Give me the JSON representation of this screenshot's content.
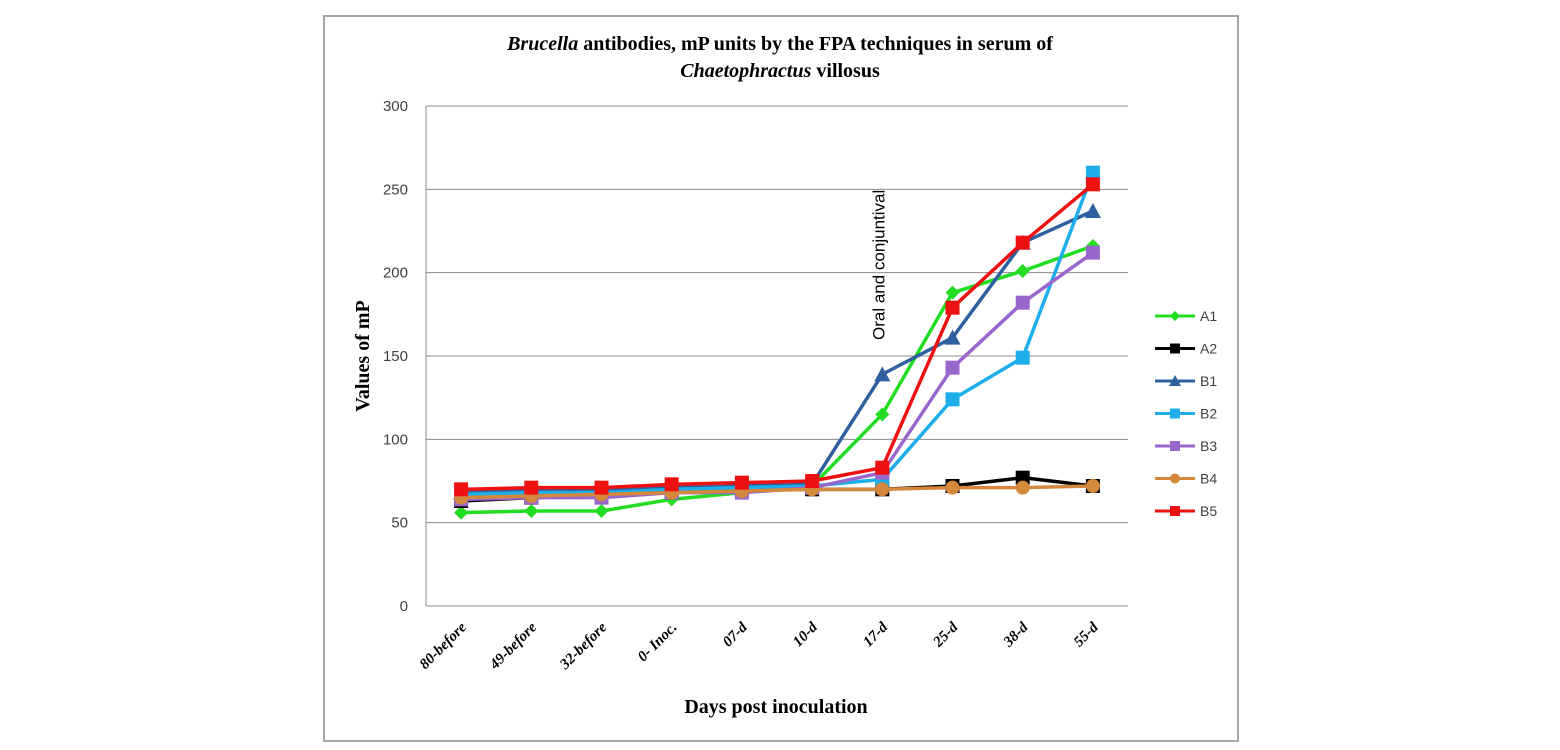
{
  "chart_data": {
    "type": "line",
    "title": {
      "line1_italic": "Brucella",
      "line1_rest": " antibodies, mP units by the FPA techniques in serum of",
      "line2_italic": "Chaetophractus",
      "line2_rest": " villosus"
    },
    "xlabel": "Days post inoculation",
    "ylabel": "Values of mP",
    "ylim": [
      0,
      300
    ],
    "yticks": [
      0,
      50,
      100,
      150,
      200,
      250,
      300
    ],
    "grid": true,
    "legend_position": "right",
    "categories": [
      "80-before",
      "49-before",
      "32-before",
      "0- Inoc.",
      "07-d",
      "10-d",
      "17-d",
      "25-d",
      "38-d",
      "55-d"
    ],
    "annotations": [
      {
        "text": "Oral and conjuntival",
        "category": "17-d",
        "orientation": "vertical"
      }
    ],
    "series": [
      {
        "name": "A1",
        "color": "#22dd22",
        "marker": "diamond",
        "values": [
          56,
          57,
          57,
          64,
          68,
          72,
          115,
          188,
          201,
          216
        ]
      },
      {
        "name": "A2",
        "color": "#000000",
        "marker": "square",
        "values": [
          63,
          65,
          66,
          68,
          70,
          70,
          70,
          72,
          77,
          72
        ]
      },
      {
        "name": "B1",
        "color": "#2e5f9e",
        "marker": "triangle",
        "values": [
          68,
          69,
          70,
          71,
          72,
          73,
          139,
          161,
          218,
          237
        ]
      },
      {
        "name": "B2",
        "color": "#1eaeea",
        "marker": "square",
        "values": [
          67,
          68,
          68,
          70,
          71,
          72,
          76,
          124,
          149,
          260
        ]
      },
      {
        "name": "B3",
        "color": "#9966cc",
        "marker": "square",
        "values": [
          64,
          65,
          65,
          68,
          68,
          71,
          80,
          143,
          182,
          212
        ]
      },
      {
        "name": "B4",
        "color": "#d4883c",
        "marker": "circle",
        "values": [
          65,
          66,
          67,
          68,
          69,
          70,
          70,
          71,
          71,
          72
        ]
      },
      {
        "name": "B5",
        "color": "#ee1111",
        "marker": "square",
        "values": [
          70,
          71,
          71,
          73,
          74,
          75,
          83,
          179,
          218,
          253
        ]
      }
    ]
  }
}
